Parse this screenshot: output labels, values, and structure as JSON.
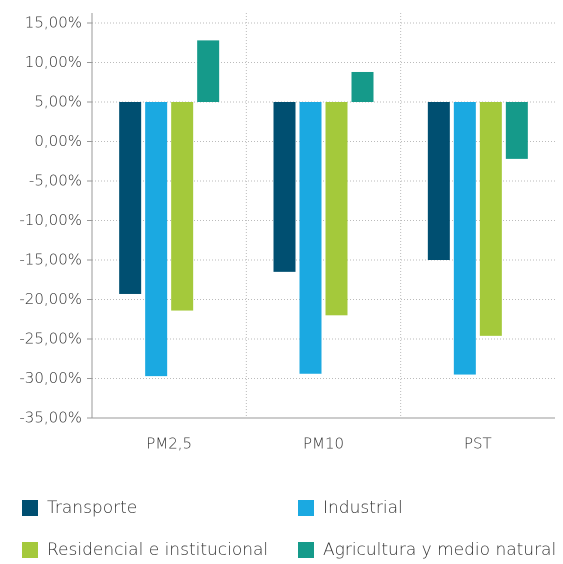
{
  "chart_data": {
    "type": "bar",
    "categories": [
      "PM2,5",
      "PM10",
      "PST"
    ],
    "series": [
      {
        "name": "Transporte",
        "color": "#004f71",
        "values": [
          -19.3,
          -16.5,
          -15
        ]
      },
      {
        "name": "Industrial",
        "color": "#1ba9e1",
        "values": [
          -29.7,
          -29.4,
          -29.5
        ]
      },
      {
        "name": "Residencial e institucional",
        "color": "#a4c93b",
        "values": [
          -21.4,
          -22,
          -24.6
        ]
      },
      {
        "name": "Agricultura y medio natural",
        "color": "#159a8a",
        "values": [
          12.8,
          8.8,
          -2.2
        ]
      }
    ],
    "bar_base": 5,
    "ylim": [
      -35,
      15
    ],
    "yticks": [
      {
        "value": -35,
        "label": "-35,00%"
      },
      {
        "value": -30,
        "label": "-30,00%"
      },
      {
        "value": -25,
        "label": "-25,00%"
      },
      {
        "value": -20,
        "label": "-20,00%"
      },
      {
        "value": -15,
        "label": "-15,00%"
      },
      {
        "value": -10,
        "label": "-10,00%"
      },
      {
        "value": -5,
        "label": "-5,00%"
      },
      {
        "value": 0,
        "label": "0,00%"
      },
      {
        "value": 5,
        "label": "5,00%"
      },
      {
        "value": 10,
        "label": "10,00%"
      },
      {
        "value": 15,
        "label": "15,00%"
      }
    ],
    "grid": true,
    "legend": "bottom"
  }
}
